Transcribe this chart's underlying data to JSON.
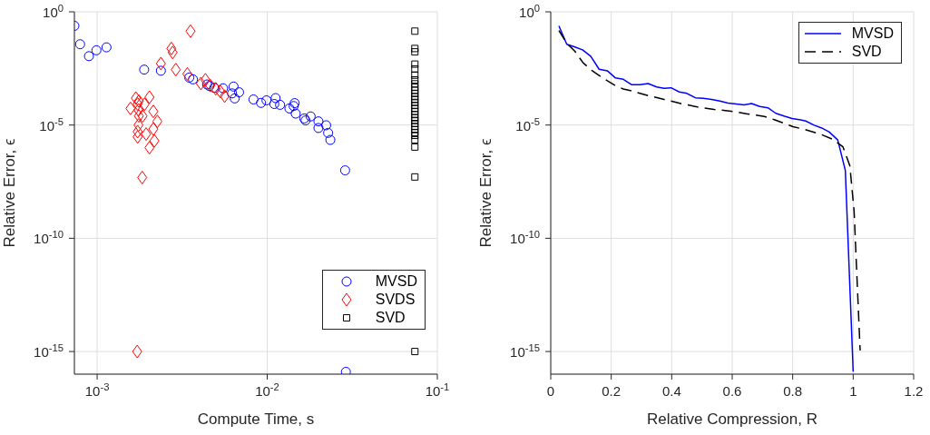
{
  "chart_data": [
    {
      "type": "scatter",
      "xlabel": "Compute Time, s",
      "ylabel": "Relative Error, ϵ",
      "log": "xy",
      "xlim": [
        0.000735,
        0.1
      ],
      "ylim": [
        1e-16,
        1
      ],
      "xticks": [
        {
          "value": 0.001,
          "label": "10$^{-3}$"
        },
        {
          "value": 0.01,
          "label": "10$^{-2}$"
        },
        {
          "value": 0.1,
          "label": "10$^{-1}$"
        }
      ],
      "yticks": [
        {
          "value": 1e-15,
          "label": "10$^{-15}$"
        },
        {
          "value": 1e-10,
          "label": "10$^{-10}$"
        },
        {
          "value": 1e-05,
          "label": "10$^{-5}$"
        },
        {
          "value": 1,
          "label": "10$^{0}$"
        }
      ],
      "grid": true,
      "legend": "bottom right",
      "series": [
        {
          "name": "MVSD",
          "color": "#0000ff",
          "marker": "circle",
          "x": [
            0.000735,
            0.000794,
            0.000895,
            0.00099,
            0.001135,
            0.00189,
            0.00237,
            0.00348,
            0.00366,
            0.00443,
            0.00457,
            0.00488,
            0.0055,
            0.00634,
            0.00621,
            0.00683,
            0.00644,
            0.0083,
            0.0092,
            0.0099,
            0.0112,
            0.011,
            0.0119,
            0.0135,
            0.0143,
            0.0145,
            0.0147,
            0.0165,
            0.0168,
            0.018,
            0.02,
            0.02,
            0.0222,
            0.0228,
            0.0235,
            0.0287,
            0.029
          ],
          "values": [
            0.24,
            0.037,
            0.011,
            0.02,
            0.027,
            0.0028,
            0.0025,
            0.00125,
            0.00104,
            0.00062,
            0.00053,
            0.00044,
            0.00042,
            0.0005,
            0.00025,
            0.00028,
            0.00015,
            0.000135,
            9.5e-05,
            0.000123,
            0.000155,
            8.5e-05,
            7.8e-05,
            5.4e-05,
            6.9e-05,
            9.3e-05,
            3.2e-05,
            1.95e-05,
            1.6e-05,
            2.4e-05,
            1.45e-05,
            7.4e-06,
            9.8e-06,
            4.5e-06,
            2.2e-06,
            1e-07,
            1.26e-16
          ]
        },
        {
          "name": "SVDS",
          "color": "#ff0000",
          "marker": "diamond",
          "x": [
            0.00354,
            0.00273,
            0.00278,
            0.00237,
            0.0029,
            0.00339,
            0.00407,
            0.00433,
            0.00462,
            0.00498,
            0.0053,
            0.00562,
            0.00169,
            0.00157,
            0.00176,
            0.00173,
            0.00175,
            0.00176,
            0.0019,
            0.00203,
            0.00185,
            0.00175,
            0.00173,
            0.00173,
            0.00194,
            0.00214,
            0.00226,
            0.00214,
            0.00217,
            0.00203,
            0.00184,
            0.00172
          ],
          "values": [
            0.14,
            0.024,
            0.016,
            0.0052,
            0.0028,
            0.0018,
            0.00068,
            0.001,
            0.00056,
            0.0004,
            0.0003,
            0.00019,
            0.000155,
            5.4e-05,
            0.000115,
            8.5e-05,
            4.6e-05,
            2.5e-05,
            8.3e-05,
            0.00017,
            2.5e-05,
            1e-05,
            5.1e-06,
            3e-06,
            4e-06,
            4e-05,
            1.45e-05,
            6.7e-06,
            2e-06,
            1e-06,
            4.8e-08,
            1e-15
          ]
        },
        {
          "name": "SVD",
          "color": "#000000",
          "marker": "square",
          "x": [
            0.0738,
            0.0738,
            0.0738,
            0.0738,
            0.0738,
            0.0738,
            0.0738,
            0.0738,
            0.0738,
            0.0738,
            0.0738,
            0.0738,
            0.0738,
            0.0738,
            0.0738,
            0.0738,
            0.0738,
            0.0738,
            0.0738,
            0.0738,
            0.0738,
            0.0738,
            0.0738,
            0.0738,
            0.0738,
            0.0738,
            0.0738,
            0.0738,
            0.0738
          ],
          "values": [
            0.14,
            0.024,
            0.017,
            0.0049,
            0.003,
            0.0016,
            0.00098,
            0.00066,
            0.00046,
            0.00034,
            0.00025,
            0.00018,
            0.000135,
            0.0001,
            7.3e-05,
            5.4e-05,
            4e-05,
            2.9e-05,
            2.1e-05,
            1.6e-05,
            1.17e-05,
            8.6e-06,
            6.3e-06,
            4.7e-06,
            3.5e-06,
            2.2e-06,
            1.07e-06,
            5.1e-08,
            1e-15
          ]
        }
      ]
    },
    {
      "type": "line",
      "xlabel": "Relative Compression, R",
      "ylabel": "Relative Error, ϵ",
      "log": "y",
      "xlim": [
        0,
        1.2
      ],
      "ylim": [
        1e-16,
        1
      ],
      "xticks": [
        0,
        0.2,
        0.4,
        0.6,
        0.8,
        1,
        1.2
      ],
      "yticks": [
        {
          "value": 1e-15,
          "label": "10$^{-15}$"
        },
        {
          "value": 1e-10,
          "label": "10$^{-10}$"
        },
        {
          "value": 1e-05,
          "label": "10$^{-5}$"
        },
        {
          "value": 1,
          "label": "10$^{0}$"
        }
      ],
      "grid": true,
      "legend": "top right",
      "marker": "none",
      "series": [
        {
          "name": "MVSD",
          "color": "#0000ff",
          "line_style": "solid",
          "x": [
            0.027,
            0.053,
            0.08,
            0.105,
            0.132,
            0.16,
            0.187,
            0.214,
            0.24,
            0.268,
            0.295,
            0.322,
            0.35,
            0.375,
            0.398,
            0.425,
            0.45,
            0.478,
            0.505,
            0.532,
            0.559,
            0.586,
            0.613,
            0.639,
            0.664,
            0.691,
            0.718,
            0.744,
            0.771,
            0.798,
            0.826,
            0.843,
            0.871,
            0.896,
            0.921,
            0.949,
            0.974,
            1.0
          ],
          "values": [
            0.24,
            0.037,
            0.028,
            0.021,
            0.011,
            0.0029,
            0.0025,
            0.0012,
            0.00105,
            0.0006,
            0.0006,
            0.00068,
            0.00048,
            0.00042,
            0.00044,
            0.00029,
            0.00025,
            0.00016,
            0.00015,
            0.000135,
            0.000115,
            9.3e-05,
            8.5e-05,
            7.8e-05,
            8.9e-05,
            6.6e-05,
            5.8e-05,
            3.3e-05,
            2.5e-05,
            1.95e-05,
            1.7e-05,
            1.5e-05,
            9.8e-06,
            7.4e-06,
            4.9e-06,
            2.2e-06,
            1e-07,
            1.3e-16
          ]
        },
        {
          "name": "SVD",
          "color": "#000000",
          "line_style": "dashed",
          "x": [
            0.027,
            0.053,
            0.08,
            0.107,
            0.135,
            0.16,
            0.187,
            0.214,
            0.24,
            0.268,
            0.322,
            0.375,
            0.43,
            0.485,
            0.54,
            0.596,
            0.65,
            0.706,
            0.741,
            0.771,
            0.801,
            0.841,
            0.891,
            0.931,
            0.966,
            0.989,
            1.003,
            1.023
          ],
          "values": [
            0.15,
            0.041,
            0.018,
            0.0056,
            0.0026,
            0.00155,
            0.00091,
            0.00055,
            0.00039,
            0.00032,
            0.0002,
            0.000135,
            8.9e-05,
            6.3e-05,
            4.9e-05,
            4.1e-05,
            3.1e-05,
            2.4e-05,
            1.7e-05,
            1.2e-05,
            8.5e-06,
            6.3e-06,
            4e-06,
            2.4e-06,
            1.1e-06,
            1.6e-07,
            1.6e-09,
            1.1e-15
          ]
        }
      ]
    }
  ]
}
